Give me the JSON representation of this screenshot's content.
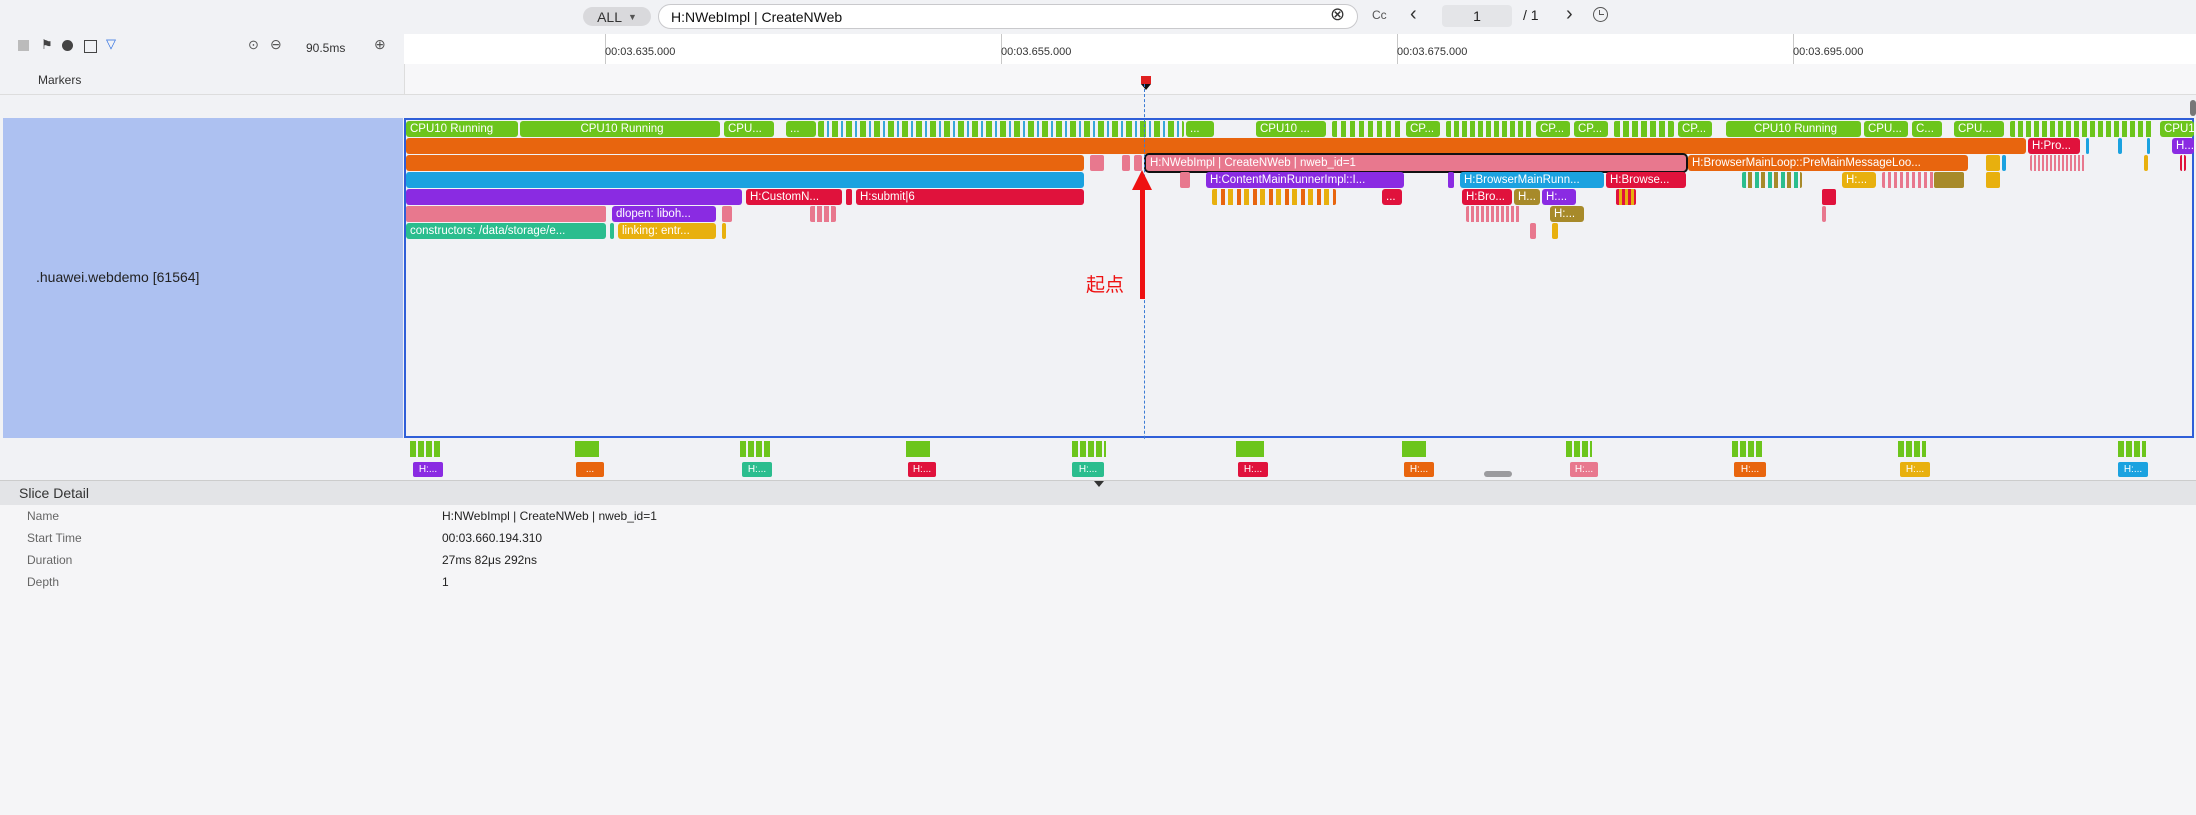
{
  "search": {
    "filter_label": "ALL",
    "query": "H:NWebImpl | CreateNWeb",
    "case_label": "Cc",
    "page_current": "1",
    "page_total": "/ 1"
  },
  "toolbar": {
    "zoom": "90.5ms"
  },
  "ruler": {
    "ticks": [
      "00:03.635.000",
      "00:03.655.000",
      "00:03.675.000",
      "00:03.695.000"
    ]
  },
  "markers": {
    "label": "Markers"
  },
  "process": {
    "name": ".huawei.webdemo [61564]",
    "cpu_row": [
      "CPU10 Running",
      "CPU10 Running",
      "CPU...",
      "...",
      "CPU10 ...",
      "...",
      "CP...",
      "CP...",
      "CP...",
      "CP...",
      "CPU10 Running",
      "CPU...",
      "C...",
      "CPU...",
      "CPU1..."
    ],
    "slices": {
      "row2_a": "H:Pro...",
      "row2_b": "H...",
      "selected": "H:NWebImpl | CreateNWeb | nweb_id=1",
      "browser_main_loop": "H:BrowserMainLoop::PreMainMessageLoo...",
      "content_main_runner": "H:ContentMainRunnerImpl::I...",
      "browser_main_runner": "H:BrowserMainRunn...",
      "browse": "H:Browse...",
      "custom": "H:CustomN...",
      "submit": "H:submit|6",
      "dlopen": "dlopen:  liboh...",
      "constructors": "constructors:  /data/storage/e...",
      "linking": "linking: entr...",
      "dots": "...",
      "h_dots": "H:...",
      "bro": "H:Bro...",
      "h_ell": "H...",
      "h_dots2": "H:..."
    }
  },
  "annotation": {
    "text": "起点"
  },
  "mini_row": [
    "H:...",
    "...",
    "H:...",
    "H:...",
    "H:...",
    "H:...",
    "H:...",
    "H:...",
    "H:...",
    "H:...",
    "H:..."
  ],
  "detail": {
    "title": "Slice Detail",
    "fields": [
      {
        "key": "Name",
        "value": "H:NWebImpl | CreateNWeb | nweb_id=1"
      },
      {
        "key": "Start Time",
        "value": "00:03.660.194.310"
      },
      {
        "key": "Duration",
        "value": "27ms 82μs 292ns"
      },
      {
        "key": "Depth",
        "value": "1"
      }
    ]
  },
  "colors": {
    "cpu_green": "#6cc51c",
    "orange": "#e8650e",
    "pink": "#e8788e",
    "blue": "#1ba2e0",
    "purple": "#8a2be2",
    "red": "#e0123c",
    "teal": "#2bbd8e",
    "yellow": "#e8b00e",
    "selection": "#2f5fd8"
  }
}
